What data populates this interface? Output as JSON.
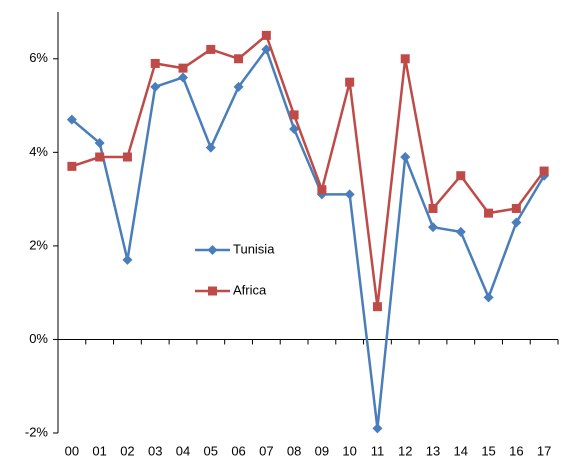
{
  "chart_data": {
    "type": "line",
    "categories": [
      "00",
      "01",
      "02",
      "03",
      "04",
      "05",
      "06",
      "07",
      "08",
      "09",
      "10",
      "11",
      "12",
      "13",
      "14",
      "15",
      "16",
      "17"
    ],
    "series": [
      {
        "name": "Tunisia",
        "color": "#4a7ebb",
        "marker": "diamond",
        "values": [
          4.7,
          4.2,
          1.7,
          5.4,
          5.6,
          4.1,
          5.4,
          6.2,
          4.5,
          3.1,
          3.1,
          -1.9,
          3.9,
          2.4,
          2.3,
          0.9,
          2.5,
          3.5
        ]
      },
      {
        "name": "Africa",
        "color": "#be4b48",
        "marker": "square",
        "values": [
          3.7,
          3.9,
          3.9,
          5.9,
          5.8,
          6.2,
          6.0,
          6.5,
          4.8,
          3.2,
          5.5,
          0.7,
          6.0,
          2.8,
          3.5,
          2.7,
          2.8,
          3.6
        ]
      }
    ],
    "ylim": [
      -2,
      7
    ],
    "yticks": [
      {
        "value": -2,
        "label": "-2%"
      },
      {
        "value": 0,
        "label": "0%"
      },
      {
        "value": 2,
        "label": "2%"
      },
      {
        "value": 4,
        "label": "4%"
      },
      {
        "value": 6,
        "label": "6%"
      }
    ],
    "grid": false,
    "legend": "center"
  }
}
